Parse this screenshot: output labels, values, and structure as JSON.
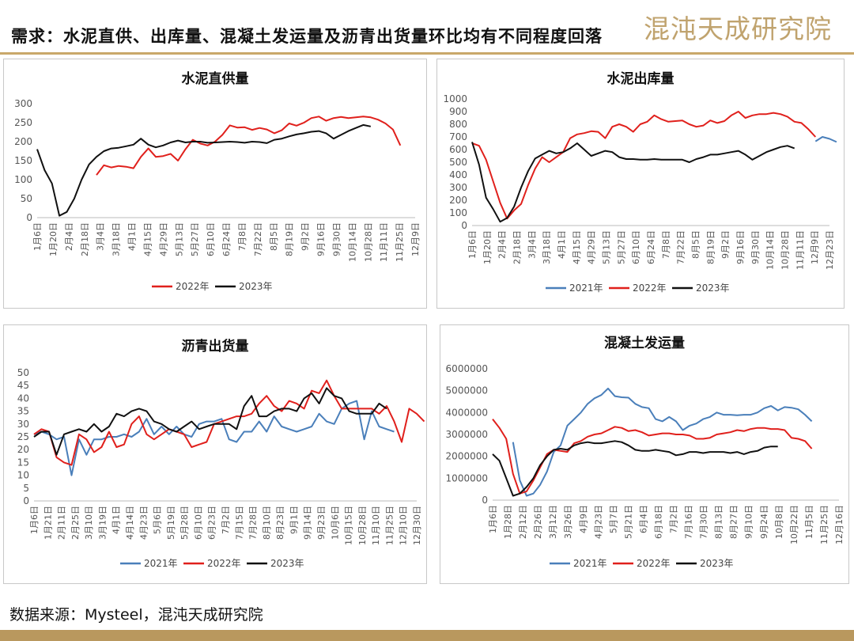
{
  "header": {
    "title": "需求：水泥直供、出库量、混凝土发运量及沥青出货量环比均有不同程度回落",
    "brand": "混沌天成研究院"
  },
  "footer": {
    "source": "数据来源：Mysteel，混沌天成研究院"
  },
  "colors": {
    "y2021": "#4a7fba",
    "y2022": "#e0201c",
    "y2023": "#111111",
    "accent": "#c9a86a"
  },
  "chart_data": [
    {
      "id": "cement-direct",
      "type": "line",
      "title": "水泥直供量",
      "ylim": [
        0,
        300
      ],
      "yticks": [
        0,
        50,
        100,
        150,
        200,
        250,
        300
      ],
      "x_count": 52,
      "xtick_labels": [
        "1月6日",
        "1月20日",
        "2月4日",
        "2月18日",
        "3月4日",
        "3月18日",
        "4月1日",
        "4月15日",
        "4月29日",
        "5月13日",
        "5月27日",
        "6月10日",
        "6月24日",
        "7月8日",
        "7月22日",
        "8月5日",
        "8月19日",
        "9月2日",
        "9月16日",
        "9月30日",
        "10月14日",
        "10月28日",
        "11月11日",
        "11月25日",
        "12月9日"
      ],
      "legend": [
        "2022年",
        "2023年"
      ],
      "series": [
        {
          "name": "2022年",
          "color": "#e0201c",
          "start": 8,
          "values": [
            112,
            138,
            132,
            136,
            134,
            130,
            160,
            182,
            160,
            162,
            168,
            150,
            180,
            205,
            195,
            190,
            200,
            218,
            243,
            237,
            238,
            231,
            236,
            232,
            222,
            230,
            248,
            242,
            250,
            262,
            266,
            255,
            262,
            265,
            262,
            264,
            266,
            264,
            258,
            248,
            232,
            190
          ]
        },
        {
          "name": "2023年",
          "color": "#111111",
          "start": 0,
          "values": [
            180,
            125,
            90,
            5,
            15,
            50,
            100,
            140,
            160,
            175,
            182,
            184,
            188,
            192,
            208,
            192,
            185,
            190,
            198,
            203,
            198,
            200,
            200,
            197,
            198,
            199,
            200,
            199,
            197,
            200,
            199,
            196,
            205,
            208,
            214,
            219,
            222,
            226,
            228,
            222,
            208,
            218,
            228,
            236,
            244,
            240
          ]
        }
      ]
    },
    {
      "id": "cement-outbound",
      "type": "line",
      "title": "水泥出库量",
      "ylim": [
        0,
        1000
      ],
      "yticks": [
        0,
        100,
        200,
        300,
        400,
        500,
        600,
        700,
        800,
        900,
        1000
      ],
      "x_count": 52,
      "xtick_labels": [
        "1月6日",
        "1月20日",
        "2月4日",
        "2月18日",
        "3月4日",
        "3月18日",
        "4月1日",
        "4月15日",
        "4月29日",
        "5月13日",
        "5月27日",
        "6月10日",
        "6月24日",
        "7月8日",
        "7月22日",
        "8月5日",
        "8月19日",
        "9月2日",
        "9月16日",
        "9月30日",
        "10月14日",
        "10月28日",
        "11月11日",
        "12月9日",
        "12月23日"
      ],
      "legend": [
        "2021年",
        "2022年",
        "2023年"
      ],
      "series": [
        {
          "name": "2021年",
          "color": "#4a7fba",
          "start": 49,
          "values": [
            665,
            700,
            685,
            660
          ]
        },
        {
          "name": "2022年",
          "color": "#e0201c",
          "start": 0,
          "values": [
            650,
            630,
            520,
            350,
            180,
            55,
            120,
            170,
            320,
            450,
            540,
            500,
            540,
            580,
            690,
            720,
            730,
            745,
            740,
            690,
            780,
            800,
            780,
            740,
            800,
            820,
            870,
            840,
            820,
            825,
            830,
            800,
            780,
            790,
            830,
            810,
            825,
            870,
            900,
            850,
            870,
            880,
            880,
            890,
            880,
            860,
            820,
            810,
            760,
            700
          ]
        },
        {
          "name": "2023年",
          "color": "#111111",
          "start": 0,
          "values": [
            660,
            480,
            220,
            130,
            30,
            60,
            150,
            300,
            430,
            530,
            560,
            590,
            570,
            580,
            610,
            650,
            600,
            550,
            570,
            590,
            580,
            540,
            525,
            525,
            520,
            520,
            525,
            520,
            520,
            520,
            520,
            500,
            525,
            540,
            560,
            560,
            570,
            580,
            590,
            560,
            520,
            550,
            580,
            600,
            620,
            630,
            610
          ]
        }
      ]
    },
    {
      "id": "asphalt-shipment",
      "type": "line",
      "title": "沥青出货量",
      "ylim": [
        0,
        50
      ],
      "yticks": [
        0,
        5,
        10,
        15,
        20,
        25,
        30,
        35,
        40,
        45,
        50
      ],
      "x_count": 52,
      "xtick_labels": [
        "1月6日",
        "1月21日",
        "2月11日",
        "2月25日",
        "3月10日",
        "3月19日",
        "4月1日",
        "4月14日",
        "4月23日",
        "5月6日",
        "5月19日",
        "5月28日",
        "6月10日",
        "6月23日",
        "7月2日",
        "7月15日",
        "7月28日",
        "8月10日",
        "8月23日",
        "9月1日",
        "9月14日",
        "9月23日",
        "10月6日",
        "10月15日",
        "10月28日",
        "11月10日",
        "11月25日",
        "12月10日",
        "12月30日"
      ],
      "legend": [
        "2021年",
        "2022年",
        "2023年"
      ],
      "series": [
        {
          "name": "2021年",
          "color": "#4a7fba",
          "start": 0,
          "values": [
            26,
            27,
            26,
            24,
            25,
            10,
            24,
            18,
            24,
            24,
            25,
            25,
            26,
            25,
            27,
            32,
            26,
            29,
            26,
            29,
            26,
            25,
            30,
            31,
            31,
            32,
            24,
            23,
            27,
            27,
            31,
            27,
            33,
            29,
            28,
            27,
            28,
            29,
            34,
            31,
            30,
            36,
            38,
            39,
            24,
            35,
            29,
            28,
            27
          ]
        },
        {
          "name": "2022年",
          "color": "#e0201c",
          "start": 0,
          "values": [
            26,
            28,
            27,
            17,
            15,
            14,
            26,
            24,
            19,
            21,
            27,
            21,
            22,
            30,
            33,
            26,
            24,
            26,
            28,
            27,
            26,
            21,
            22,
            23,
            30,
            31,
            32,
            33,
            33,
            34,
            38,
            41,
            37,
            35,
            39,
            38,
            36,
            43,
            42,
            47,
            41,
            36,
            36,
            36,
            36,
            36,
            34,
            37,
            31,
            23,
            36,
            34,
            31
          ]
        },
        {
          "name": "2023年",
          "color": "#111111",
          "start": 0,
          "values": [
            25,
            27,
            27,
            18,
            26,
            27,
            28,
            27,
            30,
            27,
            29,
            34,
            33,
            35,
            36,
            35,
            31,
            30,
            28,
            27,
            29,
            31,
            28,
            29,
            30,
            30,
            30,
            28,
            37,
            41,
            33,
            33,
            35,
            36,
            36,
            35,
            40,
            42,
            38,
            44,
            41,
            40,
            35,
            34,
            34,
            34,
            38,
            36
          ]
        }
      ]
    },
    {
      "id": "concrete-shipment",
      "type": "line",
      "title": "混凝土发运量",
      "ylim": [
        0,
        6000000
      ],
      "yticks": [
        0,
        1000000,
        2000000,
        3000000,
        4000000,
        5000000,
        6000000
      ],
      "x_count": 52,
      "xtick_labels": [
        "1月6日",
        "1月28日",
        "2月12日",
        "2月26日",
        "3月12日",
        "3月26日",
        "4月9日",
        "4月23日",
        "5月7日",
        "5月21日",
        "6月4日",
        "6月18日",
        "7月2日",
        "7月16日",
        "7月30日",
        "8月13日",
        "8月27日",
        "9月10日",
        "9月24日",
        "10月8日",
        "10月22日",
        "11月5日",
        "11月25日",
        "12月16日"
      ],
      "legend": [
        "2021年",
        "2022年",
        "2023年"
      ],
      "series": [
        {
          "name": "2021年",
          "color": "#4a7fba",
          "start": 3,
          "values": [
            2650000,
            900000,
            200000,
            300000,
            700000,
            1300000,
            2200000,
            2500000,
            3400000,
            3700000,
            4000000,
            4400000,
            4650000,
            4800000,
            5100000,
            4750000,
            4700000,
            4680000,
            4400000,
            4250000,
            4200000,
            3700000,
            3600000,
            3800000,
            3600000,
            3200000,
            3400000,
            3500000,
            3700000,
            3800000,
            4000000,
            3900000,
            3900000,
            3880000,
            3900000,
            3900000,
            4000000,
            4200000,
            4300000,
            4100000,
            4250000,
            4220000,
            4150000,
            3900000,
            3600000
          ]
        },
        {
          "name": "2022年",
          "color": "#e0201c",
          "start": 0,
          "values": [
            3700000,
            3300000,
            2800000,
            1200000,
            300000,
            400000,
            900000,
            1500000,
            2100000,
            2300000,
            2250000,
            2200000,
            2600000,
            2700000,
            2900000,
            3000000,
            3050000,
            3200000,
            3350000,
            3300000,
            3150000,
            3200000,
            3100000,
            2950000,
            3000000,
            3050000,
            3050000,
            3000000,
            3000000,
            2950000,
            2800000,
            2800000,
            2850000,
            3000000,
            3050000,
            3100000,
            3200000,
            3150000,
            3250000,
            3300000,
            3300000,
            3250000,
            3250000,
            3200000,
            2850000,
            2800000,
            2700000,
            2350000
          ]
        },
        {
          "name": "2023年",
          "color": "#111111",
          "start": 0,
          "values": [
            2100000,
            1800000,
            1000000,
            200000,
            300000,
            600000,
            1000000,
            1600000,
            2000000,
            2300000,
            2350000,
            2300000,
            2500000,
            2600000,
            2650000,
            2600000,
            2600000,
            2650000,
            2700000,
            2650000,
            2500000,
            2300000,
            2250000,
            2250000,
            2300000,
            2250000,
            2200000,
            2050000,
            2100000,
            2200000,
            2200000,
            2150000,
            2200000,
            2200000,
            2200000,
            2150000,
            2200000,
            2100000,
            2200000,
            2250000,
            2400000,
            2450000,
            2450000
          ]
        }
      ]
    }
  ]
}
